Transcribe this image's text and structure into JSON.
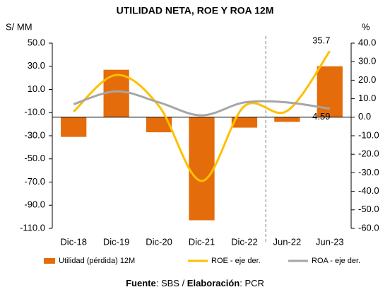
{
  "chart_data": {
    "type": "bar-line",
    "title": "UTILIDAD NETA, ROE Y ROA 12M",
    "ylabel": "S/ MM",
    "y2label": "%",
    "categories": [
      "Dic-18",
      "Dic-19",
      "Dic-20",
      "Dic-21",
      "Dic-22",
      "Jun-22",
      "Jun-23"
    ],
    "series": [
      {
        "name": "Utilidad (pérdida) 12M",
        "type": "bar",
        "color": "#e46c0a",
        "values": [
          -31,
          27,
          -27,
          -103,
          -23,
          -18,
          30
        ]
      },
      {
        "name": "ROE - eje der.",
        "type": "line",
        "axis": "y2",
        "color": "#ffc000",
        "values": [
          3,
          22.8,
          6,
          -34.4,
          6,
          3.4,
          35.7
        ],
        "value_labels": [
          null,
          null,
          null,
          null,
          null,
          null,
          "35.7"
        ]
      },
      {
        "name": "ROA - eje der.",
        "type": "line",
        "axis": "y2",
        "color": "#a6a6a6",
        "values": [
          7,
          14,
          8,
          1,
          8,
          8,
          4.59
        ],
        "value_labels": [
          null,
          null,
          null,
          null,
          null,
          null,
          "4.59"
        ]
      }
    ],
    "ylim": [
      -110,
      50
    ],
    "yticks": [
      {
        "value": -110,
        "label": "-110.0"
      },
      {
        "value": -90,
        "label": "-90.0"
      },
      {
        "value": -70,
        "label": "-70.0"
      },
      {
        "value": -50,
        "label": "-50.0"
      },
      {
        "value": -30,
        "label": "-30.0"
      },
      {
        "value": -10,
        "label": "-10.0"
      },
      {
        "value": 10,
        "label": "10.0"
      },
      {
        "value": 30,
        "label": "30.0"
      },
      {
        "value": 50,
        "label": "50.0"
      }
    ],
    "y2lim": [
      -60,
      40
    ],
    "y2ticks": [
      {
        "value": -60,
        "label": "-60.0"
      },
      {
        "value": -50,
        "label": "-50.0"
      },
      {
        "value": -40,
        "label": "-40.0"
      },
      {
        "value": -30,
        "label": "-30.0"
      },
      {
        "value": -20,
        "label": "-20.0"
      },
      {
        "value": -10,
        "label": "-10.0"
      },
      {
        "value": 0,
        "label": "0.0"
      },
      {
        "value": 10,
        "label": "10.0"
      },
      {
        "value": 20,
        "label": "20.0"
      },
      {
        "value": 30,
        "label": "30.0"
      },
      {
        "value": 40,
        "label": "40.0"
      }
    ],
    "source": [
      {
        "text": "Fuente",
        "bold": true
      },
      {
        "text": ": SBS / ",
        "bold": false
      },
      {
        "text": "Elaboración",
        "bold": true
      },
      {
        "text": ": PCR",
        "bold": false
      }
    ]
  }
}
